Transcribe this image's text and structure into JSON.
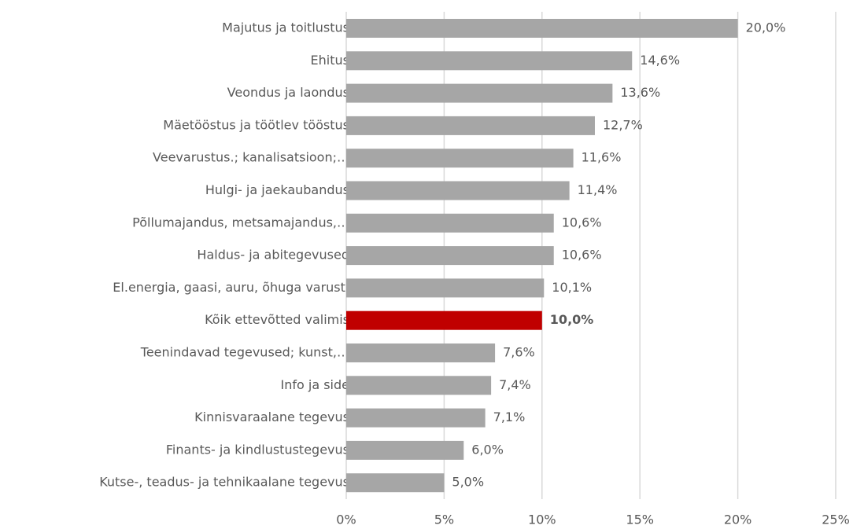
{
  "chart_data": {
    "type": "barh",
    "categories": [
      "Majutus ja toitlustus",
      "Ehitus",
      "Veondus ja laondus",
      "Mäetööstus ja töötlev tööstus",
      "Veevarustus.; kanalisatsioon;…",
      "Hulgi- ja jaekaubandus",
      "Põllumajandus, metsamajandus,…",
      "Haldus- ja abitegevused",
      "El.energia, gaasi, auru, õhuga varust.",
      "Kõik ettevõtted valimis",
      "Teenindavad tegevused; kunst,…",
      "Info ja side",
      "Kinnisvaraalane tegevus",
      "Finants- ja kindlustustegevus",
      "Kutse-, teadus- ja tehnikaalane tegevus"
    ],
    "values": [
      20.0,
      14.6,
      13.6,
      12.7,
      11.6,
      11.4,
      10.6,
      10.6,
      10.1,
      10.0,
      7.6,
      7.4,
      7.1,
      6.0,
      5.0
    ],
    "value_labels": [
      "20,0%",
      "14,6%",
      "13,6%",
      "12,7%",
      "11,6%",
      "11,4%",
      "10,6%",
      "10,6%",
      "10,1%",
      "10,0%",
      "7,6%",
      "7,4%",
      "7,1%",
      "6,0%",
      "5,0%"
    ],
    "color": "#a6a6a6",
    "colors": [
      "#a6a6a6",
      "#a6a6a6",
      "#a6a6a6",
      "#a6a6a6",
      "#a6a6a6",
      "#a6a6a6",
      "#a6a6a6",
      "#a6a6a6",
      "#a6a6a6",
      "#c00000",
      "#a6a6a6",
      "#a6a6a6",
      "#a6a6a6",
      "#a6a6a6",
      "#a6a6a6"
    ],
    "xlim": [
      0,
      25
    ],
    "xticks": [
      {
        "value": 0,
        "label": "0%"
      },
      {
        "value": 5,
        "label": "5%"
      },
      {
        "value": 10,
        "label": "10%"
      },
      {
        "value": 15,
        "label": "15%"
      },
      {
        "value": 20,
        "label": "20%"
      },
      {
        "value": 25,
        "label": "25%"
      }
    ],
    "grid": true
  }
}
